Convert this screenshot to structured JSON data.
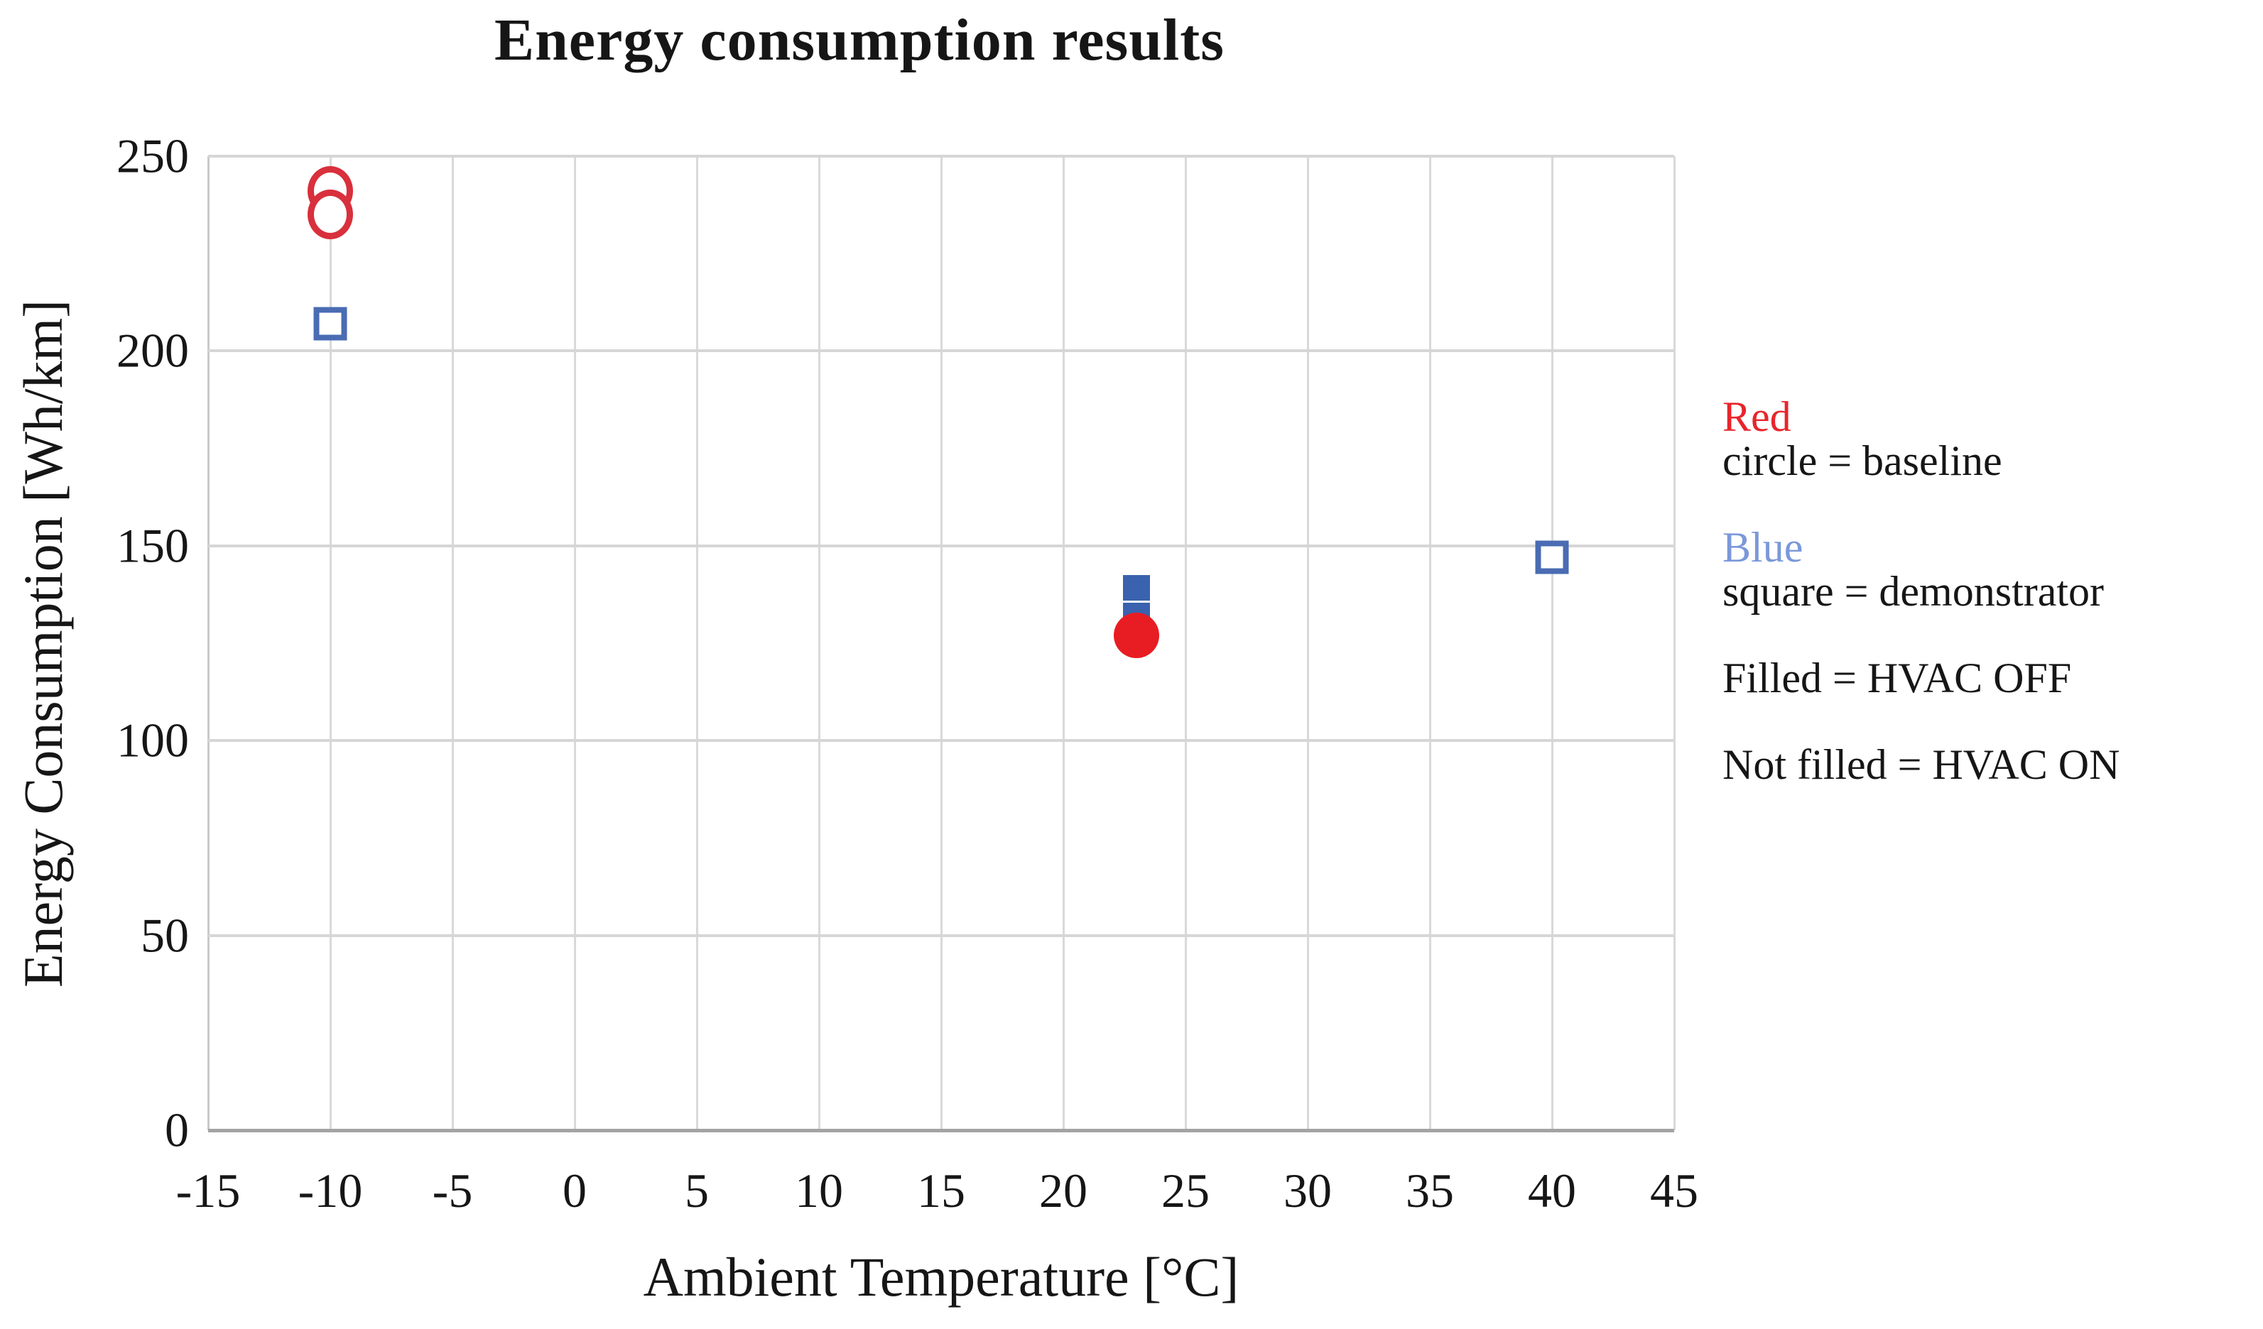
{
  "chart_data": {
    "type": "scatter",
    "title": "Energy consumption results",
    "xlabel": "Ambient Temperature [°C]",
    "ylabel": "Energy Consumption [Wh/km]",
    "xlim": [
      -15,
      45
    ],
    "ylim": [
      0,
      250
    ],
    "xticks": [
      -15,
      -10,
      -5,
      0,
      5,
      10,
      15,
      20,
      25,
      30,
      35,
      40,
      45
    ],
    "yticks": [
      0,
      50,
      100,
      150,
      200,
      250
    ],
    "grid": true,
    "legend_position": "right-outside",
    "series": [
      {
        "name": "Baseline, HVAC ON",
        "marker": "circle",
        "filled": false,
        "color": "#d8303c",
        "points": [
          [
            -10,
            241
          ],
          [
            -10,
            235
          ]
        ]
      },
      {
        "name": "Demonstrator, HVAC ON",
        "marker": "square",
        "filled": false,
        "color": "#4a6cb3",
        "points": [
          [
            -10,
            207
          ],
          [
            40,
            147
          ]
        ]
      },
      {
        "name": "Demonstrator, HVAC OFF",
        "marker": "square",
        "filled": true,
        "color": "#3a62ae",
        "points": [
          [
            23,
            139
          ],
          [
            23,
            132
          ]
        ]
      },
      {
        "name": "Baseline, HVAC OFF",
        "marker": "circle",
        "filled": true,
        "color": "#e81c23",
        "points": [
          [
            23,
            127
          ]
        ]
      }
    ]
  },
  "legend": {
    "items": [
      {
        "prefix": "Red",
        "prefix_color": "#e8252b",
        "rest": " circle = baseline"
      },
      {
        "prefix": "Blue",
        "prefix_color": "#7b98d9",
        "rest": " square = demonstrator"
      },
      {
        "prefix": "",
        "prefix_color": "",
        "rest": "Filled = HVAC OFF"
      },
      {
        "prefix": "",
        "prefix_color": "",
        "rest": "Not filled = HVAC ON"
      }
    ]
  },
  "colors": {
    "grid": "#d9d9d9",
    "axis": "#a3a3a3",
    "text": "#161616",
    "red_outline": "#d8303c",
    "red_fill": "#e81c23",
    "blue_outline": "#4a6cb3",
    "blue_fill": "#3a62ae"
  }
}
